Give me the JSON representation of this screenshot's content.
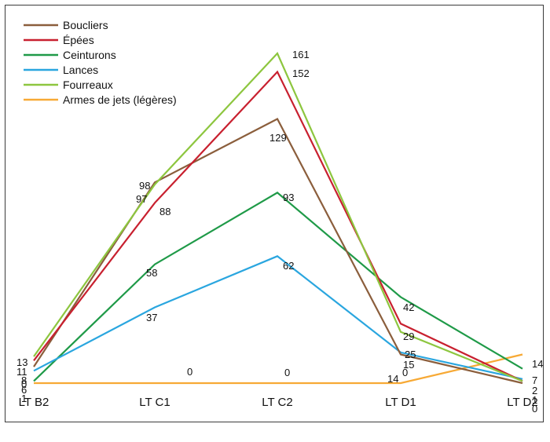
{
  "chart_data": {
    "type": "line",
    "categories": [
      "LT B2",
      "LT C1",
      "LT C2",
      "LT D1",
      "LT D2"
    ],
    "ylim": [
      0,
      165
    ],
    "grid": false,
    "legend": "top-left",
    "series": [
      {
        "name": "Boucliers",
        "color": "#8b5e3c",
        "values": [
          8,
          98,
          129,
          14,
          0
        ]
      },
      {
        "name": "Épées",
        "color": "#c8202f",
        "values": [
          11,
          88,
          152,
          29,
          1
        ]
      },
      {
        "name": "Ceinturons",
        "color": "#1f9a48",
        "values": [
          1,
          58,
          93,
          42,
          7
        ]
      },
      {
        "name": "Lances",
        "color": "#2aa6df",
        "values": [
          6,
          37,
          62,
          15,
          2
        ]
      },
      {
        "name": "Fourreaux",
        "color": "#8dc63f",
        "values": [
          13,
          97,
          161,
          25,
          1
        ]
      },
      {
        "name": "Armes de jets (légères)",
        "color": "#f7a935",
        "values": [
          0,
          0,
          0,
          0,
          14
        ]
      }
    ],
    "data_labels": [
      {
        "text": "13",
        "series": 4,
        "point": 0
      },
      {
        "text": "11",
        "series": 1,
        "point": 0
      },
      {
        "text": "8",
        "series": 0,
        "point": 0
      },
      {
        "text": "6",
        "series": 3,
        "point": 0
      },
      {
        "text": "1",
        "series": 2,
        "point": 0
      },
      {
        "text": "0",
        "series": 5,
        "point": 0
      },
      {
        "text": "98",
        "series": 0,
        "point": 1
      },
      {
        "text": "97",
        "series": 4,
        "point": 1
      },
      {
        "text": "88",
        "series": 1,
        "point": 1
      },
      {
        "text": "58",
        "series": 2,
        "point": 1
      },
      {
        "text": "37",
        "series": 3,
        "point": 1
      },
      {
        "text": "0",
        "series": 5,
        "point": 1
      },
      {
        "text": "161",
        "series": 4,
        "point": 2
      },
      {
        "text": "152",
        "series": 1,
        "point": 2
      },
      {
        "text": "129",
        "series": 0,
        "point": 2
      },
      {
        "text": "93",
        "series": 2,
        "point": 2
      },
      {
        "text": "62",
        "series": 3,
        "point": 2
      },
      {
        "text": "0",
        "series": 5,
        "point": 2
      },
      {
        "text": "42",
        "series": 2,
        "point": 3
      },
      {
        "text": "29",
        "series": 1,
        "point": 3
      },
      {
        "text": "25",
        "series": 4,
        "point": 3
      },
      {
        "text": "15",
        "series": 3,
        "point": 3
      },
      {
        "text": "14",
        "series": 0,
        "point": 3
      },
      {
        "text": "0",
        "series": 5,
        "point": 3
      },
      {
        "text": "14",
        "series": 5,
        "point": 4
      },
      {
        "text": "7",
        "series": 2,
        "point": 4
      },
      {
        "text": "2",
        "series": 3,
        "point": 4
      },
      {
        "text": "1",
        "series": 1,
        "point": 4
      },
      {
        "text": "0",
        "series": 0,
        "point": 4
      }
    ]
  }
}
